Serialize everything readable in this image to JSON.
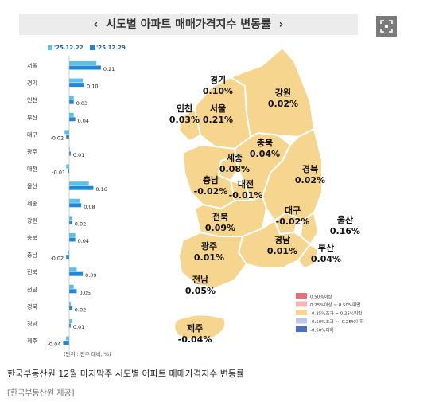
{
  "header": {
    "title": "시도별 아파트 매매가격지수 변동률",
    "prev_icon": "chevron-left-icon",
    "next_icon": "chevron-right-icon",
    "expand_icon": "expand-icon"
  },
  "bar_legend": {
    "series1": "'25.12.22",
    "series2": "'25.12.29"
  },
  "unit_note": "(단위 : 전주 대비, %)",
  "chart_data": [
    {
      "type": "bar",
      "orientation": "horizontal",
      "categories": [
        "서울",
        "경기",
        "인천",
        "부산",
        "대구",
        "광주",
        "대전",
        "울산",
        "세종",
        "강원",
        "충북",
        "충남",
        "전북",
        "전남",
        "경북",
        "경남",
        "제주"
      ],
      "series": [
        {
          "name": "'25.12.22",
          "color": "#5bc0eb",
          "values": [
            0.18,
            0.09,
            0.03,
            0.03,
            -0.03,
            0.0,
            -0.02,
            0.13,
            0.07,
            0.02,
            0.04,
            -0.01,
            0.05,
            0.03,
            0.01,
            0.02,
            -0.02
          ]
        },
        {
          "name": "'25.12.29",
          "color": "#1e88d6",
          "values": [
            0.21,
            0.1,
            0.03,
            0.04,
            -0.02,
            0.01,
            -0.01,
            0.16,
            0.08,
            0.02,
            0.04,
            -0.02,
            0.09,
            0.05,
            0.02,
            0.01,
            -0.04
          ]
        }
      ],
      "value_labels": [
        "0.21",
        "0.10",
        "0.03",
        "0.04",
        "-0.02",
        "0.01",
        "-0.01",
        "0.16",
        "0.08",
        "0.02",
        "0.04",
        "-0.02",
        "0.09",
        "0.05",
        "0.02",
        "0.01",
        "-0.04"
      ]
    },
    {
      "type": "map",
      "regions": [
        {
          "name": "경기",
          "value": "0.10%"
        },
        {
          "name": "인천",
          "value": "0.03%"
        },
        {
          "name": "서울",
          "value": "0.21%"
        },
        {
          "name": "강원",
          "value": "0.02%"
        },
        {
          "name": "충북",
          "value": "0.04%"
        },
        {
          "name": "세종",
          "value": "0.08%"
        },
        {
          "name": "충남",
          "value": "-0.02%"
        },
        {
          "name": "대전",
          "value": "-0.01%"
        },
        {
          "name": "경북",
          "value": "0.02%"
        },
        {
          "name": "전북",
          "value": "0.09%"
        },
        {
          "name": "대구",
          "value": "-0.02%"
        },
        {
          "name": "울산",
          "value": "0.16%"
        },
        {
          "name": "광주",
          "value": "0.01%"
        },
        {
          "name": "경남",
          "value": "0.01%"
        },
        {
          "name": "부산",
          "value": "0.04%"
        },
        {
          "name": "전남",
          "value": "0.05%"
        },
        {
          "name": "제주",
          "value": "-0.04%"
        }
      ],
      "legend": [
        {
          "label": "0.50%이상",
          "color": "#e8707a"
        },
        {
          "label": "0.25%이상 ~ 0.50%미만",
          "color": "#f2b8b8"
        },
        {
          "label": "-0.25%초과 ~ 0.25%미만",
          "color": "#f6d58e"
        },
        {
          "label": "-0.50%초과 ~ -0.25%이하",
          "color": "#b9c7e8"
        },
        {
          "label": "-0.50%이하",
          "color": "#4a6fc4"
        }
      ],
      "fill_color": "#f6d58e"
    }
  ],
  "caption": "한국부동산원 12월 마지막주 시도별 아파트 매매가격지수 변동률",
  "credit": "[한국부동산원 제공]"
}
